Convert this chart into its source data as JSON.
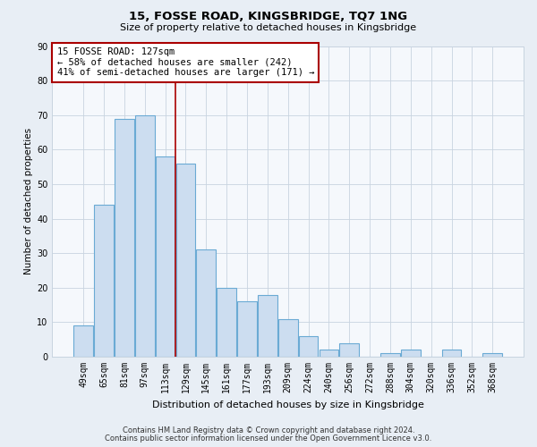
{
  "title": "15, FOSSE ROAD, KINGSBRIDGE, TQ7 1NG",
  "subtitle": "Size of property relative to detached houses in Kingsbridge",
  "xlabel": "Distribution of detached houses by size in Kingsbridge",
  "ylabel": "Number of detached properties",
  "bar_labels": [
    "49sqm",
    "65sqm",
    "81sqm",
    "97sqm",
    "113sqm",
    "129sqm",
    "145sqm",
    "161sqm",
    "177sqm",
    "193sqm",
    "209sqm",
    "224sqm",
    "240sqm",
    "256sqm",
    "272sqm",
    "288sqm",
    "304sqm",
    "320sqm",
    "336sqm",
    "352sqm",
    "368sqm"
  ],
  "bar_values": [
    9,
    44,
    69,
    70,
    58,
    56,
    31,
    20,
    16,
    18,
    11,
    6,
    2,
    4,
    0,
    1,
    2,
    0,
    2,
    0,
    1
  ],
  "bar_color": "#ccddf0",
  "bar_edge_color": "#6aaad4",
  "ylim": [
    0,
    90
  ],
  "yticks": [
    0,
    10,
    20,
    30,
    40,
    50,
    60,
    70,
    80,
    90
  ],
  "vline_position": 4.5,
  "property_line_label": "15 FOSSE ROAD: 127sqm",
  "annotation_line1": "← 58% of detached houses are smaller (242)",
  "annotation_line2": "41% of semi-detached houses are larger (171) →",
  "vline_color": "#aa0000",
  "annotation_box_edge": "#aa0000",
  "footer1": "Contains HM Land Registry data © Crown copyright and database right 2024.",
  "footer2": "Contains public sector information licensed under the Open Government Licence v3.0.",
  "bg_color": "#e8eef5",
  "plot_bg_color": "#f5f8fc",
  "grid_color": "#c8d4e0",
  "title_fontsize": 9.5,
  "subtitle_fontsize": 8,
  "ylabel_fontsize": 7.5,
  "xlabel_fontsize": 8,
  "tick_fontsize": 7,
  "annot_fontsize": 7.5,
  "footer_fontsize": 6
}
